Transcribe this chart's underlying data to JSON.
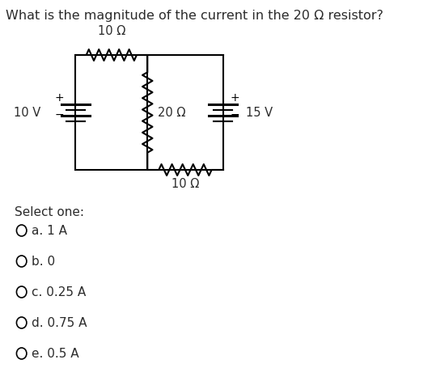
{
  "title": "What is the magnitude of the current in the 20 Ω resistor?",
  "title_fontsize": 11.5,
  "background_color": "#ffffff",
  "labels": {
    "res_top": "10 Ω",
    "res_mid": "20 Ω",
    "res_bot": "10 Ω",
    "v_left": "10 V",
    "v_right": "15 V"
  },
  "options_title": "Select one:",
  "options": [
    "a. 1 A",
    "b. 0",
    "c. 0.25 A",
    "d. 0.75 A",
    "e. 0.5 A"
  ],
  "line_color": "#000000",
  "line_width": 1.5,
  "text_color": "#2b2b2b",
  "font_size_labels": 10.5,
  "font_size_options": 11
}
